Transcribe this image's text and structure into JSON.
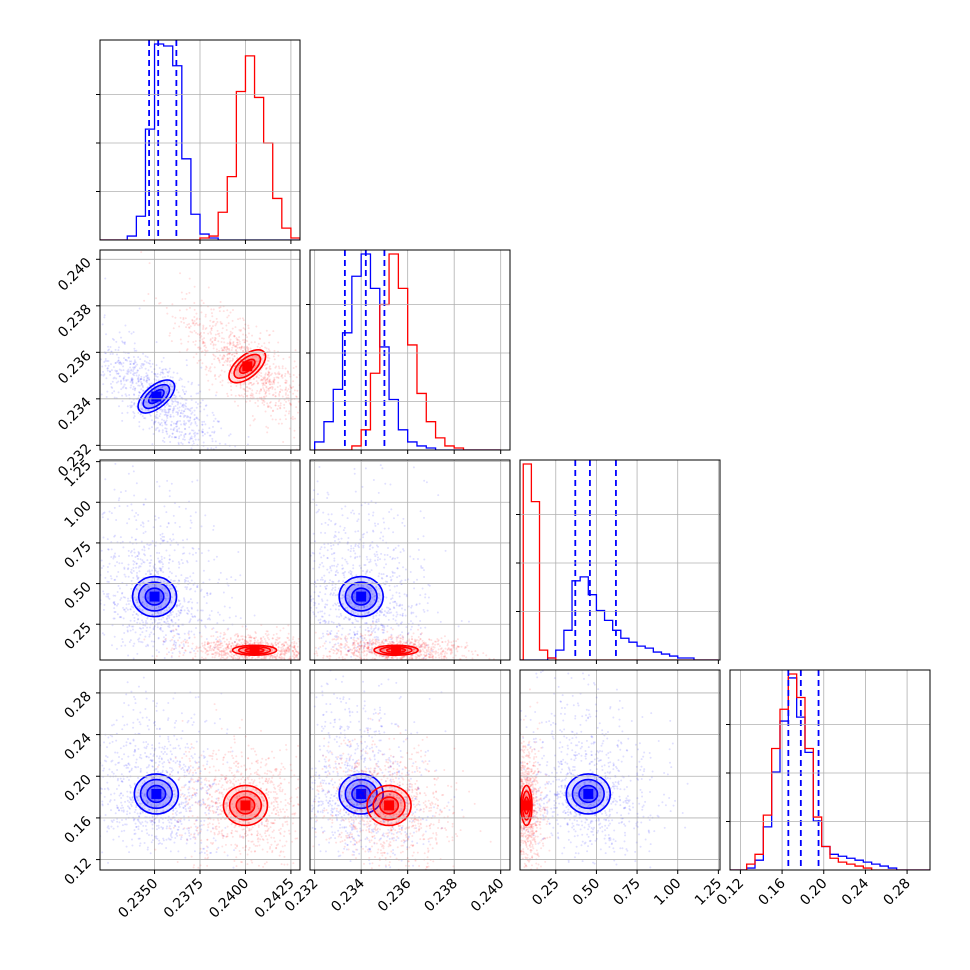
{
  "colors": {
    "blue": "#0000ff",
    "red": "#ff0000",
    "grid": "#b0b0b0",
    "frame": "#000000"
  },
  "chart_data": {
    "type": "corner",
    "n_params": 4,
    "grid": true,
    "series": [
      {
        "color": "#0000ff",
        "quantile_lines": [
          [
            0.2347,
            0.2352,
            0.2362
          ],
          [
            0.2333,
            0.2342,
            0.235
          ],
          [
            0.37,
            0.46,
            0.62
          ],
          [
            0.166,
            0.178,
            0.195
          ]
        ],
        "hists": [
          {
            "edges": [
              0.232,
              0.2325,
              0.233,
              0.2335,
              0.234,
              0.2345,
              0.235,
              0.2355,
              0.236,
              0.2365,
              0.237,
              0.2375,
              0.238,
              0.2385,
              0.239,
              0.2395,
              0.24,
              0.2405,
              0.241,
              0.2415,
              0.242,
              0.2425,
              0.243
            ],
            "counts": [
              0,
              0,
              0,
              2,
              12,
              56,
              99,
              98,
              88,
              41,
              13,
              3,
              1,
              0,
              0,
              0,
              0,
              0,
              0,
              0,
              0,
              0
            ]
          },
          {
            "edges": [
              0.232,
              0.2324,
              0.2328,
              0.2332,
              0.2336,
              0.234,
              0.2344,
              0.2348,
              0.2352,
              0.2356,
              0.236,
              0.2364,
              0.2368,
              0.2372,
              0.2376,
              0.238,
              0.2384,
              0.2388,
              0.2392,
              0.2396,
              0.24
            ],
            "counts": [
              4,
              14,
              30,
              58,
              86,
              97,
              80,
              51,
              25,
              10,
              4,
              2,
              1,
              0,
              0,
              0,
              0,
              0,
              0,
              0
            ]
          },
          {
            "edges": [
              0.0,
              0.05,
              0.1,
              0.15,
              0.2,
              0.25,
              0.3,
              0.35,
              0.4,
              0.45,
              0.5,
              0.55,
              0.6,
              0.65,
              0.7,
              0.75,
              0.8,
              0.85,
              0.9,
              0.95,
              1.0,
              1.05,
              1.1,
              1.15,
              1.2,
              1.25
            ],
            "counts": [
              0,
              0,
              0,
              0,
              1,
              5,
              15,
              40,
              42,
              33,
              25,
              20,
              15,
              11,
              9,
              7,
              6,
              4,
              3,
              2,
              1,
              1,
              0,
              0,
              0
            ]
          },
          {
            "edges": [
              0.11,
              0.118,
              0.126,
              0.134,
              0.142,
              0.15,
              0.158,
              0.166,
              0.174,
              0.182,
              0.19,
              0.198,
              0.206,
              0.214,
              0.222,
              0.23,
              0.238,
              0.246,
              0.254,
              0.262,
              0.27,
              0.278,
              0.286,
              0.294,
              0.302
            ],
            "counts": [
              0,
              0,
              1,
              5,
              22,
              50,
              76,
              98,
              78,
              60,
              25,
              12,
              8,
              7,
              6,
              5,
              4,
              3,
              2,
              1,
              0,
              0,
              0,
              0
            ]
          }
        ],
        "centers": [
          [
            0.2351,
            0.2341
          ],
          [
            0.235,
            0.42
          ],
          [
            0.234,
            0.42
          ],
          [
            0.2351,
            0.183
          ],
          [
            0.234,
            0.183
          ],
          [
            0.45,
            0.183
          ]
        ]
      },
      {
        "color": "#ff0000",
        "hists": [
          {
            "edges": [
              0.232,
              0.2325,
              0.233,
              0.2335,
              0.234,
              0.2345,
              0.235,
              0.2355,
              0.236,
              0.2365,
              0.237,
              0.2375,
              0.238,
              0.2385,
              0.239,
              0.2395,
              0.24,
              0.2405,
              0.241,
              0.2415,
              0.242,
              0.2425,
              0.243
            ],
            "counts": [
              0,
              0,
              0,
              0,
              0,
              0,
              0,
              0,
              0,
              0,
              0,
              1,
              2,
              14,
              32,
              75,
              93,
              72,
              49,
              21,
              6,
              1
            ]
          },
          {
            "edges": [
              0.232,
              0.2324,
              0.2328,
              0.2332,
              0.2336,
              0.234,
              0.2344,
              0.2348,
              0.2352,
              0.2356,
              0.236,
              0.2364,
              0.2368,
              0.2372,
              0.2376,
              0.238,
              0.2384,
              0.2388,
              0.2392,
              0.2396,
              0.24
            ],
            "counts": [
              0,
              0,
              0,
              0,
              2,
              10,
              38,
              72,
              97,
              80,
              52,
              28,
              14,
              6,
              2,
              1,
              0,
              0,
              0,
              0
            ]
          },
          {
            "edges": [
              0.0,
              0.05,
              0.1,
              0.15,
              0.2,
              0.25,
              0.3,
              0.35,
              0.4,
              0.45,
              0.5,
              0.55,
              0.6,
              0.65,
              0.7,
              0.75,
              0.8,
              0.85,
              0.9,
              0.95,
              1.0,
              1.05,
              1.1,
              1.15,
              1.2,
              1.25
            ],
            "counts": [
              0,
              99,
              80,
              5,
              1,
              0,
              0,
              0,
              0,
              0,
              0,
              0,
              0,
              0,
              0,
              0,
              0,
              0,
              0,
              0,
              0,
              0,
              0,
              0,
              0
            ]
          },
          {
            "edges": [
              0.11,
              0.118,
              0.126,
              0.134,
              0.142,
              0.15,
              0.158,
              0.166,
              0.174,
              0.182,
              0.19,
              0.198,
              0.206,
              0.214,
              0.222,
              0.23,
              0.238,
              0.246,
              0.254,
              0.262,
              0.27,
              0.278,
              0.286,
              0.294,
              0.302
            ],
            "counts": [
              0,
              0,
              3,
              8,
              28,
              62,
              82,
              100,
              88,
              62,
              27,
              12,
              6,
              4,
              3,
              2,
              1,
              0,
              0,
              0,
              0,
              0,
              0,
              0
            ]
          }
        ],
        "centers": [
          [
            0.2401,
            0.2354
          ],
          [
            0.2405,
            0.09
          ],
          [
            0.2355,
            0.09
          ],
          [
            0.24,
            0.172
          ],
          [
            0.2352,
            0.172
          ],
          [
            0.07,
            0.172
          ]
        ]
      }
    ],
    "axes": [
      {
        "range": [
          0.232,
          0.243
        ],
        "ticks": [
          0.235,
          0.2375,
          0.24,
          0.2425
        ],
        "tick_labels": [
          "0.2350",
          "0.2375",
          "0.2400",
          "0.2425"
        ]
      },
      {
        "range": [
          0.2318,
          0.2404
        ],
        "ticks": [
          0.232,
          0.234,
          0.236,
          0.238,
          0.24
        ],
        "tick_labels": [
          "0.232",
          "0.234",
          "0.236",
          "0.238",
          "0.240"
        ]
      },
      {
        "range": [
          0.03,
          1.26
        ],
        "ticks": [
          0.25,
          0.5,
          0.75,
          1.0,
          1.25
        ],
        "tick_labels": [
          "0.25",
          "0.50",
          "0.75",
          "1.00",
          "1.25"
        ]
      },
      {
        "range": [
          0.11,
          0.302
        ],
        "ticks": [
          0.12,
          0.16,
          0.2,
          0.24,
          0.28
        ],
        "tick_labels": [
          "0.12",
          "0.16",
          "0.20",
          "0.24",
          "0.28"
        ]
      }
    ]
  }
}
